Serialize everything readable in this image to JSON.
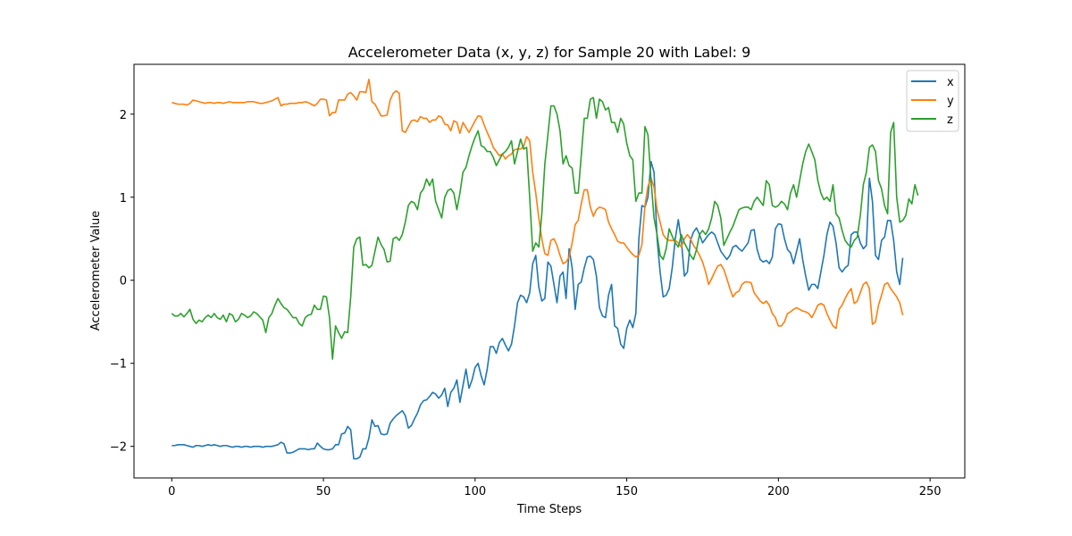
{
  "chart_data": {
    "type": "line",
    "title": "Accelerometer Data (x, y, z) for Sample 20 with Label: 9",
    "xlabel": "Time Steps",
    "ylabel": "Accelerometer Value",
    "xlim": [
      -12.45,
      261.45
    ],
    "ylim": [
      -2.38,
      2.6
    ],
    "xticks": [
      0,
      50,
      100,
      150,
      200,
      250
    ],
    "xtick_labels": [
      "0",
      "50",
      "100",
      "150",
      "200",
      "250"
    ],
    "yticks": [
      -2,
      -1,
      0,
      1,
      2
    ],
    "ytick_labels": [
      "−2",
      "−1",
      "0",
      "1",
      "2"
    ],
    "grid": false,
    "legend_position": "top-right",
    "series": [
      {
        "name": "x",
        "color": "#1f77b4",
        "values": [
          -1.99,
          -1.99,
          -1.98,
          -1.98,
          -1.98,
          -1.99,
          -2.0,
          -2.01,
          -1.99,
          -1.99,
          -2.0,
          -1.99,
          -1.98,
          -1.99,
          -1.98,
          -1.99,
          -2.0,
          -1.99,
          -1.99,
          -2.0,
          -2.01,
          -2.0,
          -2.0,
          -2.01,
          -2.0,
          -2.0,
          -2.01,
          -2.0,
          -2.0,
          -2.0,
          -2.01,
          -2.0,
          -2.0,
          -2.0,
          -1.99,
          -1.98,
          -1.95,
          -1.97,
          -2.08,
          -2.08,
          -2.07,
          -2.05,
          -2.03,
          -2.03,
          -2.03,
          -2.04,
          -2.03,
          -2.03,
          -1.96,
          -2.0,
          -2.03,
          -2.04,
          -2.04,
          -2.03,
          -1.98,
          -1.98,
          -1.85,
          -1.84,
          -1.76,
          -1.8,
          -2.15,
          -2.15,
          -2.13,
          -2.03,
          -2.03,
          -1.9,
          -1.68,
          -1.76,
          -1.75,
          -1.85,
          -1.86,
          -1.85,
          -1.72,
          -1.67,
          -1.63,
          -1.6,
          -1.57,
          -1.63,
          -1.78,
          -1.75,
          -1.67,
          -1.6,
          -1.5,
          -1.45,
          -1.44,
          -1.4,
          -1.35,
          -1.37,
          -1.42,
          -1.38,
          -1.3,
          -1.52,
          -1.35,
          -1.3,
          -1.2,
          -1.47,
          -1.27,
          -1.07,
          -1.3,
          -1.2,
          -1.05,
          -1.0,
          -1.15,
          -1.26,
          -1.07,
          -0.8,
          -0.8,
          -0.88,
          -0.75,
          -0.7,
          -0.78,
          -0.85,
          -0.77,
          -0.55,
          -0.27,
          -0.18,
          -0.2,
          -0.27,
          -0.15,
          0.2,
          0.3,
          -0.08,
          -0.25,
          -0.22,
          0.22,
          0.17,
          -0.05,
          -0.27,
          0.05,
          0.1,
          -0.22,
          0.38,
          0.15,
          -0.35,
          -0.05,
          -0.02,
          0.15,
          0.28,
          0.29,
          0.25,
          0.05,
          -0.33,
          -0.43,
          -0.45,
          -0.18,
          -0.05,
          -0.55,
          -0.58,
          -0.77,
          -0.82,
          -0.58,
          -0.48,
          -0.57,
          -0.4,
          0.5,
          0.9,
          0.88,
          1.0,
          1.43,
          1.3,
          0.5,
          0.1,
          -0.2,
          -0.18,
          -0.1,
          0.15,
          0.5,
          0.73,
          0.48,
          0.05,
          0.1,
          0.48,
          0.58,
          0.63,
          0.55,
          0.45,
          0.5,
          0.55,
          0.58,
          0.55,
          0.45,
          0.35,
          0.3,
          0.25,
          0.3,
          0.4,
          0.42,
          0.38,
          0.35,
          0.4,
          0.45,
          0.6,
          0.61,
          0.37,
          0.25,
          0.22,
          0.24,
          0.2,
          0.28,
          0.62,
          0.68,
          0.67,
          0.5,
          0.37,
          0.33,
          0.2,
          0.35,
          0.5,
          0.25,
          0.05,
          -0.12,
          -0.05,
          -0.05,
          -0.1,
          0.1,
          0.3,
          0.55,
          0.7,
          0.65,
          0.45,
          0.15,
          0.1,
          0.15,
          0.18,
          0.55,
          0.58,
          0.58,
          0.45,
          0.38,
          0.42,
          1.23,
          0.95,
          0.3,
          0.25,
          0.48,
          0.52,
          0.72,
          0.72,
          0.48,
          0.1,
          -0.05,
          0.27
        ]
      },
      {
        "name": "y",
        "color": "#ff7f0e",
        "values": [
          2.14,
          2.13,
          2.12,
          2.12,
          2.12,
          2.11,
          2.13,
          2.17,
          2.16,
          2.15,
          2.14,
          2.13,
          2.14,
          2.14,
          2.13,
          2.14,
          2.14,
          2.13,
          2.14,
          2.15,
          2.14,
          2.14,
          2.14,
          2.14,
          2.14,
          2.15,
          2.15,
          2.15,
          2.14,
          2.13,
          2.13,
          2.14,
          2.15,
          2.16,
          2.18,
          2.2,
          2.1,
          2.12,
          2.12,
          2.13,
          2.13,
          2.13,
          2.14,
          2.14,
          2.15,
          2.14,
          2.12,
          2.1,
          2.13,
          2.18,
          2.18,
          2.17,
          1.98,
          2.02,
          2.02,
          2.17,
          2.17,
          2.17,
          2.24,
          2.26,
          2.22,
          2.17,
          2.27,
          2.27,
          2.26,
          2.42,
          2.15,
          2.12,
          2.05,
          1.98,
          1.98,
          1.99,
          2.17,
          2.25,
          2.28,
          2.25,
          1.8,
          1.78,
          1.85,
          1.92,
          1.93,
          1.91,
          1.97,
          1.95,
          1.95,
          1.9,
          1.93,
          1.93,
          1.98,
          1.96,
          1.88,
          1.87,
          1.8,
          1.92,
          1.9,
          1.77,
          1.9,
          1.84,
          1.78,
          1.85,
          1.92,
          1.98,
          1.97,
          1.87,
          1.78,
          1.7,
          1.6,
          1.55,
          1.5,
          1.52,
          1.46,
          1.5,
          1.52,
          1.57,
          1.58,
          1.58,
          1.61,
          1.73,
          1.68,
          1.3,
          1.05,
          0.75,
          0.5,
          0.32,
          0.3,
          0.48,
          0.5,
          0.42,
          0.3,
          0.2,
          0.22,
          0.28,
          0.45,
          0.67,
          0.72,
          0.92,
          1.09,
          1.09,
          0.88,
          0.77,
          0.85,
          0.88,
          0.87,
          0.85,
          0.7,
          0.62,
          0.55,
          0.47,
          0.45,
          0.45,
          0.4,
          0.35,
          0.31,
          0.28,
          0.3,
          0.43,
          0.9,
          1.13,
          1.23,
          1.12,
          0.85,
          0.7,
          0.55,
          0.5,
          0.48,
          0.48,
          0.48,
          0.45,
          0.4,
          0.5,
          0.55,
          0.5,
          0.42,
          0.37,
          0.3,
          0.22,
          0.1,
          -0.05,
          0.02,
          0.1,
          0.17,
          0.19,
          0.13,
          0.02,
          -0.1,
          -0.2,
          -0.15,
          -0.13,
          -0.05,
          -0.02,
          -0.02,
          -0.03,
          -0.15,
          -0.2,
          -0.25,
          -0.28,
          -0.25,
          -0.3,
          -0.4,
          -0.45,
          -0.55,
          -0.55,
          -0.5,
          -0.4,
          -0.38,
          -0.35,
          -0.33,
          -0.35,
          -0.37,
          -0.38,
          -0.4,
          -0.45,
          -0.38,
          -0.3,
          -0.28,
          -0.3,
          -0.4,
          -0.48,
          -0.55,
          -0.58,
          -0.35,
          -0.3,
          -0.22,
          -0.15,
          -0.1,
          -0.28,
          -0.25,
          -0.15,
          -0.05,
          -0.02,
          -0.1,
          -0.53,
          -0.5,
          -0.3,
          -0.18,
          -0.05,
          -0.03,
          -0.1,
          -0.15,
          -0.2,
          -0.27,
          -0.42
        ]
      },
      {
        "name": "z",
        "color": "#2ca02c",
        "values": [
          -0.4,
          -0.43,
          -0.43,
          -0.4,
          -0.44,
          -0.4,
          -0.35,
          -0.47,
          -0.52,
          -0.48,
          -0.5,
          -0.45,
          -0.42,
          -0.45,
          -0.4,
          -0.45,
          -0.47,
          -0.42,
          -0.5,
          -0.4,
          -0.42,
          -0.5,
          -0.47,
          -0.4,
          -0.42,
          -0.45,
          -0.43,
          -0.38,
          -0.4,
          -0.44,
          -0.48,
          -0.63,
          -0.45,
          -0.4,
          -0.3,
          -0.22,
          -0.28,
          -0.33,
          -0.35,
          -0.4,
          -0.45,
          -0.45,
          -0.52,
          -0.55,
          -0.45,
          -0.42,
          -0.41,
          -0.3,
          -0.35,
          -0.35,
          -0.19,
          -0.2,
          -0.45,
          -0.95,
          -0.55,
          -0.63,
          -0.7,
          -0.62,
          -0.63,
          -0.2,
          0.4,
          0.5,
          0.52,
          0.18,
          0.19,
          0.15,
          0.18,
          0.35,
          0.52,
          0.43,
          0.37,
          0.22,
          0.23,
          0.5,
          0.52,
          0.48,
          0.55,
          0.7,
          0.9,
          0.95,
          0.93,
          0.85,
          1.05,
          1.1,
          1.22,
          1.14,
          1.22,
          0.95,
          0.85,
          0.75,
          1.0,
          1.08,
          1.1,
          1.05,
          0.85,
          1.05,
          1.3,
          1.36,
          1.5,
          1.62,
          1.72,
          1.8,
          1.62,
          1.6,
          1.55,
          1.55,
          1.48,
          1.38,
          1.45,
          1.52,
          1.55,
          1.6,
          1.68,
          1.4,
          1.55,
          1.7,
          1.58,
          1.6,
          1.0,
          0.35,
          0.45,
          0.4,
          0.8,
          1.4,
          1.75,
          2.1,
          2.1,
          2.0,
          1.8,
          1.4,
          1.5,
          1.38,
          1.35,
          1.05,
          1.05,
          1.5,
          1.95,
          1.95,
          2.18,
          2.2,
          1.95,
          2.18,
          2.15,
          2.05,
          2.08,
          1.9,
          1.9,
          1.78,
          1.95,
          1.88,
          1.65,
          1.5,
          1.45,
          0.95,
          1.05,
          1.05,
          1.85,
          1.75,
          1.2,
          0.75,
          0.55,
          0.3,
          0.25,
          0.38,
          0.62,
          0.53,
          0.45,
          0.4,
          0.55,
          0.45,
          0.38,
          0.3,
          0.25,
          0.37,
          0.55,
          0.6,
          0.55,
          0.62,
          0.75,
          0.95,
          0.9,
          0.75,
          0.42,
          0.5,
          0.58,
          0.65,
          0.75,
          0.85,
          0.87,
          0.88,
          0.88,
          0.85,
          0.95,
          1.0,
          0.95,
          0.9,
          1.2,
          1.15,
          0.9,
          0.88,
          0.9,
          0.95,
          0.92,
          0.85,
          1.05,
          1.15,
          1.0,
          1.2,
          1.4,
          1.55,
          1.64,
          1.55,
          1.45,
          1.2,
          1.05,
          0.97,
          1.0,
          0.95,
          1.15,
          0.8,
          0.75,
          0.6,
          0.48,
          0.43,
          0.4,
          0.48,
          0.52,
          0.78,
          1.15,
          1.3,
          1.6,
          1.63,
          1.55,
          1.2,
          1.1,
          0.9,
          0.8,
          1.78,
          1.9,
          1.0,
          0.7,
          0.72,
          0.78,
          0.98,
          0.92,
          1.15,
          1.02
        ]
      }
    ]
  }
}
